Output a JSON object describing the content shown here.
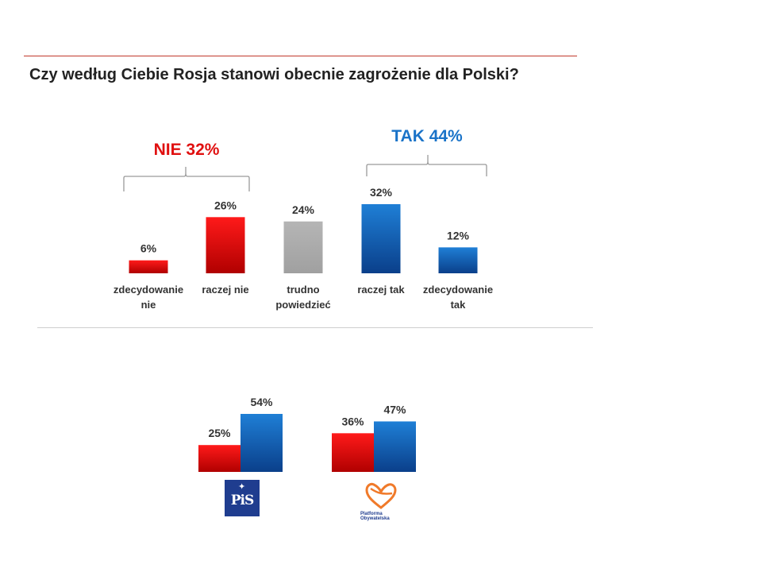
{
  "title": "Czy według Ciebie Rosja stanowi obecnie zagrożenie dla Polski?",
  "colors": {
    "red": "#e00000",
    "gray": "#a6a6a6",
    "blue": "#0d66c2",
    "nie": "#e01010",
    "tak": "#1a73c8"
  },
  "logos": {
    "pis": "PiS",
    "po": "Platforma Obywatelska"
  },
  "chart_data": [
    {
      "type": "bar",
      "title": "",
      "groups": [
        {
          "label": "NIE 32%",
          "color": "#e01010",
          "categories": [
            "zdecydowanie nie",
            "raczej nie"
          ]
        },
        {
          "label": "TAK 44%",
          "color": "#1a73c8",
          "categories": [
            "raczej tak",
            "zdecydowanie tak"
          ]
        }
      ],
      "categories": [
        [
          "zdecydowanie",
          "nie"
        ],
        [
          "raczej nie"
        ],
        [
          "trudno",
          "powiedzieć"
        ],
        [
          "raczej tak"
        ],
        [
          "zdecydowanie",
          "tak"
        ]
      ],
      "values": [
        6,
        26,
        24,
        32,
        12
      ],
      "value_labels": [
        "6%",
        "26%",
        "24%",
        "32%",
        "12%"
      ],
      "bar_colors": [
        "red",
        "red",
        "gray",
        "blue",
        "blue"
      ],
      "ylim": [
        0,
        35
      ]
    },
    {
      "type": "bar",
      "title": "",
      "categories": [
        "PiS",
        "Platforma Obywatelska"
      ],
      "series": [
        {
          "name": "NIE",
          "color": "red",
          "values": [
            25,
            36
          ],
          "value_labels": [
            "25%",
            "36%"
          ]
        },
        {
          "name": "TAK",
          "color": "blue",
          "values": [
            54,
            47
          ],
          "value_labels": [
            "54%",
            "47%"
          ]
        }
      ],
      "ylim": [
        0,
        60
      ]
    }
  ]
}
